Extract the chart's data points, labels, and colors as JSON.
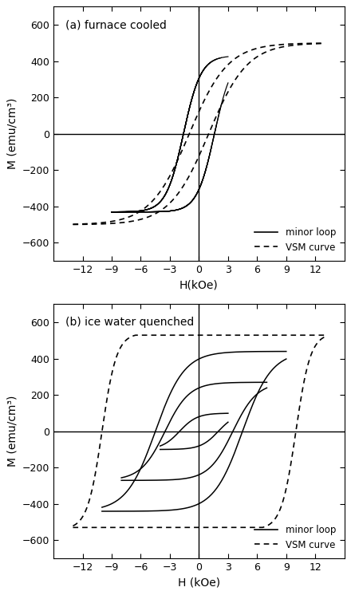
{
  "fig_width": 4.4,
  "fig_height": 7.46,
  "dpi": 100,
  "background_color": "#ffffff",
  "panel_a_label": "(a) furnace cooled",
  "panel_b_label": "(b) ice water quenched",
  "xlabel_a": "H(kOe)",
  "xlabel_b": "H (kOe)",
  "ylabel": "M (emu/cm³)",
  "xlim": [
    -15,
    15
  ],
  "ylim_a": [
    -700,
    700
  ],
  "ylim_b": [
    -700,
    700
  ],
  "xticks": [
    -12,
    -9,
    -6,
    -3,
    0,
    3,
    6,
    9,
    12
  ],
  "yticks": [
    -600,
    -400,
    -200,
    0,
    200,
    400,
    600
  ],
  "legend_minor": "minor loop",
  "legend_vsm": "VSM curve"
}
